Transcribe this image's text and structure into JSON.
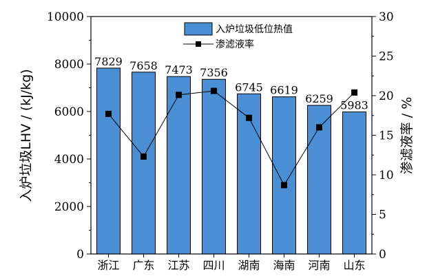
{
  "chart_data": {
    "type": "bar+line",
    "categories": [
      "浙江",
      "广东",
      "江苏",
      "四川",
      "湖南",
      "海南",
      "河南",
      "山东"
    ],
    "series": [
      {
        "name": "入炉垃圾低位热值",
        "type": "bar",
        "axis": "left",
        "values": [
          7829,
          7658,
          7473,
          7356,
          6745,
          6619,
          6259,
          5983
        ],
        "color": "#4a8fd4"
      },
      {
        "name": "渗滤液率",
        "type": "line",
        "axis": "right",
        "values": [
          17.7,
          12.3,
          20.1,
          20.6,
          17.2,
          8.7,
          16.0,
          20.4
        ],
        "color": "#000000"
      }
    ],
    "ylabel_left": "入炉垃圾LHV / (kJ/kg)",
    "ylabel_right": "渗滤液率 / %",
    "ylim_left": [
      0,
      10000
    ],
    "ylim_right": [
      0,
      30
    ],
    "yticks_left": [
      "0",
      "2000",
      "4000",
      "6000",
      "8000",
      "10000"
    ],
    "yticks_right": [
      "0",
      "5",
      "10",
      "15",
      "20",
      "25",
      "30"
    ],
    "legend_position": "top-right",
    "grid": false
  }
}
